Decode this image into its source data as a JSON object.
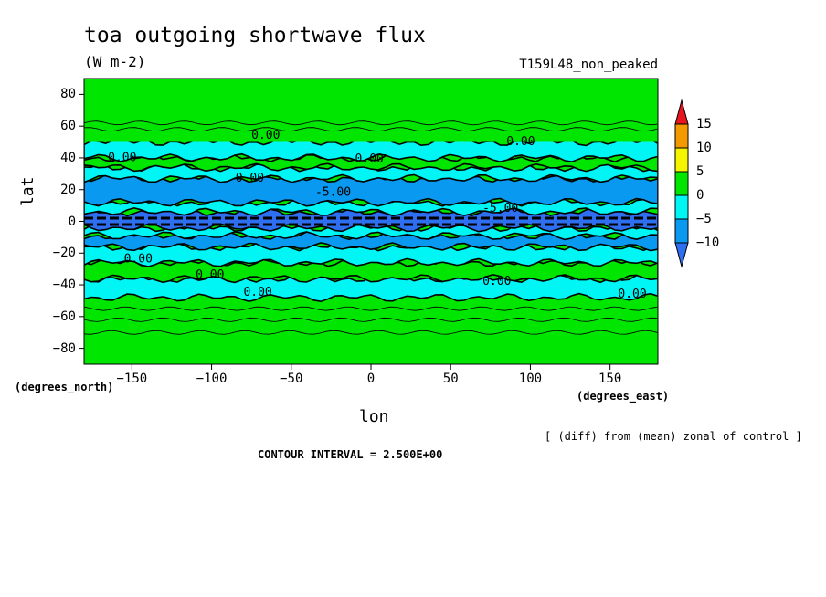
{
  "chart_data": {
    "type": "heatmap",
    "title": "toa outgoing shortwave flux",
    "units": "(W m-2)",
    "run_label": "T159L48_non_peaked",
    "xlabel": "lon",
    "ylabel": "lat",
    "x_unit_label": "(degrees_east)",
    "y_unit_label": "(degrees_north)",
    "xlim": [
      -180,
      180
    ],
    "ylim": [
      -90,
      90
    ],
    "x_ticks": [
      "-150",
      "-100",
      "-50",
      "0",
      "50",
      "100",
      "150"
    ],
    "y_ticks": [
      "80",
      "60",
      "40",
      "20",
      "0",
      "-20",
      "-40",
      "-60",
      "-80"
    ],
    "colorbar": {
      "levels": [
        "15",
        "10",
        "5",
        "0",
        "-5",
        "-10"
      ],
      "colors": [
        "#e8141e",
        "#f39a00",
        "#f5f500",
        "#00e600",
        "#00f5f5",
        "#0a99f0",
        "#2e6ef0"
      ]
    },
    "zonal_bands": [
      {
        "lat": [
          -90,
          -48
        ],
        "range": "0 to 5",
        "color": "#00e600"
      },
      {
        "lat": [
          -48,
          -36
        ],
        "range": "-5 to 0",
        "color": "#00f5f5"
      },
      {
        "lat": [
          -36,
          -26
        ],
        "range": "0 to 5",
        "color": "#00e600"
      },
      {
        "lat": [
          -26,
          -16
        ],
        "range": "-5 to 0",
        "color": "#00f5f5"
      },
      {
        "lat": [
          -16,
          -9
        ],
        "range": "-10 to -5",
        "color": "#0a99f0"
      },
      {
        "lat": [
          -9,
          -4
        ],
        "range": "-5 to 0",
        "color": "#00f5f5"
      },
      {
        "lat": [
          -4,
          6
        ],
        "range": "< -10",
        "color": "#2e6ef0"
      },
      {
        "lat": [
          6,
          12
        ],
        "range": "-5 to 0",
        "color": "#00f5f5"
      },
      {
        "lat": [
          12,
          27
        ],
        "range": "-10 to -5",
        "color": "#0a99f0"
      },
      {
        "lat": [
          27,
          34
        ],
        "range": "-5 to 0",
        "color": "#00f5f5"
      },
      {
        "lat": [
          34,
          40
        ],
        "range": "0 to 5",
        "color": "#00e600"
      },
      {
        "lat": [
          40,
          50
        ],
        "range": "-5 to 0",
        "color": "#00f5f5"
      },
      {
        "lat": [
          50,
          90
        ],
        "range": "0 to 5",
        "color": "#00e600"
      }
    ],
    "contour_labels": [
      {
        "text": "0.00",
        "lon": -75,
        "lat": 52
      },
      {
        "text": "0.00",
        "lon": -165,
        "lat": 38
      },
      {
        "text": "0.00",
        "lon": -10,
        "lat": 37
      },
      {
        "text": "0.00",
        "lon": 85,
        "lat": 48
      },
      {
        "text": "0.00",
        "lon": -85,
        "lat": 25
      },
      {
        "text": "-5.00",
        "lon": -35,
        "lat": 16
      },
      {
        "text": "-5.00",
        "lon": 70,
        "lat": 6
      },
      {
        "text": "0.00",
        "lon": -155,
        "lat": -26
      },
      {
        "text": "0.00",
        "lon": -110,
        "lat": -36
      },
      {
        "text": "0.00",
        "lon": -80,
        "lat": -47
      },
      {
        "text": "0.00",
        "lon": 70,
        "lat": -40
      },
      {
        "text": "0.00",
        "lon": 155,
        "lat": -48
      }
    ]
  },
  "footer": {
    "diff_note": "[ (diff) from (mean) zonal of control ]",
    "contour_interval": "CONTOUR INTERVAL = 2.500E+00"
  }
}
